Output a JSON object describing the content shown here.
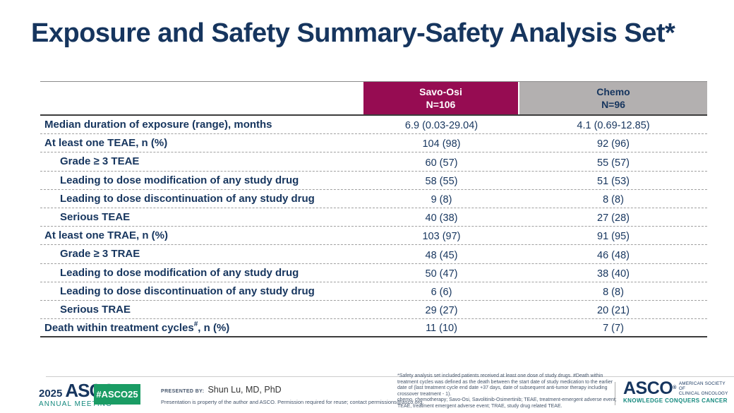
{
  "title": "Exposure and Safety Summary-Safety Analysis Set*",
  "table": {
    "col_groups": [
      {
        "name": "Savo-Osi",
        "n": "N=106"
      },
      {
        "name": "Chemo",
        "n": "N=96"
      }
    ],
    "rows": [
      {
        "label": "Median duration of exposure (range), months",
        "sup": "",
        "suffix": "",
        "indent": 0,
        "savo_osi": "6.9 (0.03-29.04)",
        "chemo": "4.1 (0.69-12.85)"
      },
      {
        "label": "At least one TEAE, n (%)",
        "sup": "",
        "suffix": "",
        "indent": 0,
        "savo_osi": "104 (98)",
        "chemo": "92 (96)"
      },
      {
        "label": "Grade ≥ 3 TEAE",
        "sup": "",
        "suffix": "",
        "indent": 1,
        "savo_osi": "60 (57)",
        "chemo": "55 (57)"
      },
      {
        "label": "Leading to dose modification of any study drug",
        "sup": "",
        "suffix": "",
        "indent": 1,
        "savo_osi": "58 (55)",
        "chemo": "51 (53)"
      },
      {
        "label": "Leading to dose discontinuation of any study drug",
        "sup": "",
        "suffix": "",
        "indent": 1,
        "savo_osi": "9 (8)",
        "chemo": "8 (8)"
      },
      {
        "label": "Serious TEAE",
        "sup": "",
        "suffix": "",
        "indent": 1,
        "savo_osi": "40 (38)",
        "chemo": "27 (28)"
      },
      {
        "label": "At least one TRAE, n (%)",
        "sup": "",
        "suffix": "",
        "indent": 0,
        "savo_osi": "103 (97)",
        "chemo": "91 (95)"
      },
      {
        "label": "Grade ≥ 3 TRAE",
        "sup": "",
        "suffix": "",
        "indent": 1,
        "savo_osi": "48 (45)",
        "chemo": "46 (48)"
      },
      {
        "label": "Leading to dose modification of any study drug",
        "sup": "",
        "suffix": "",
        "indent": 1,
        "savo_osi": "50 (47)",
        "chemo": "38 (40)"
      },
      {
        "label": "Leading to dose discontinuation of any study drug",
        "sup": "",
        "suffix": "",
        "indent": 1,
        "savo_osi": "6 (6)",
        "chemo": "8 (8)"
      },
      {
        "label": "Serious TRAE",
        "sup": "",
        "suffix": "",
        "indent": 1,
        "savo_osi": "29 (27)",
        "chemo": "20 (21)"
      },
      {
        "label": "Death within treatment cycles",
        "sup": "#",
        "suffix": ", n (%)",
        "indent": 0,
        "savo_osi": "11 (10)",
        "chemo": "7 (7)"
      }
    ]
  },
  "footer": {
    "meeting_year": "2025",
    "meeting_org": "ASCO",
    "reg_mark": "®",
    "meeting_name": "ANNUAL MEETING",
    "hashtag": "#ASCO25",
    "presented_by_label": "PRESENTED BY:",
    "presenter": "Shun Lu, MD, PhD",
    "permission": "Presentation is property of the author and ASCO. Permission required for reuse; contact permissions@asco.org.",
    "footnote1": "*Safety analysis set included patients received at least one dose of study drugs. #Death within treatment cycles was defined as the death between the start date of study medication to the earlier date of (last treatment cycle end date +37 days, date of subsequent anti-tumor therapy including crossover treatment - 1).",
    "footnote2": "chemo, chemotherapy; Savo-Osi, Savolitinib-Osimertinib; TEAE, treatment-emergent adverse event; TEAE, treatment emergent adverse event; TRAE, study drug related TEAE.",
    "asco_word": "ASCO",
    "asco_society_line1": "AMERICAN SOCIETY OF",
    "asco_society_line2": "CLINICAL ONCOLOGY",
    "asco_tagline": "KNOWLEDGE CONQUERS CANCER"
  },
  "colors": {
    "navy": "#16355E",
    "header_magenta": "#960C52",
    "header_gray": "#B3B0B0",
    "badge_green": "#1A9C64",
    "teal": "#15897E"
  }
}
